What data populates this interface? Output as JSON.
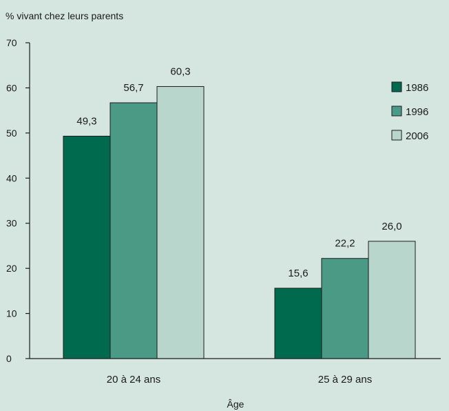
{
  "chart_data": {
    "type": "bar",
    "title": "",
    "ylabel": "% vivant chez leurs parents",
    "xlabel": "Âge",
    "categories": [
      "20 à 24 ans",
      "25 à 29 ans"
    ],
    "series": [
      {
        "name": "1986",
        "color": "#006a4e",
        "values": [
          49.3,
          15.6
        ],
        "labels": [
          "49,3",
          "15,6"
        ]
      },
      {
        "name": "1996",
        "color": "#4a9a86",
        "values": [
          56.7,
          22.2
        ],
        "labels": [
          "56,7",
          "22,2"
        ]
      },
      {
        "name": "2006",
        "color": "#b9d6cd",
        "values": [
          60.3,
          26.0
        ],
        "labels": [
          "60,3",
          "26,0"
        ]
      }
    ],
    "ylim": [
      0,
      70
    ],
    "yticks": [
      0,
      10,
      20,
      30,
      40,
      50,
      60,
      70
    ],
    "grid": false,
    "legend": "right"
  }
}
